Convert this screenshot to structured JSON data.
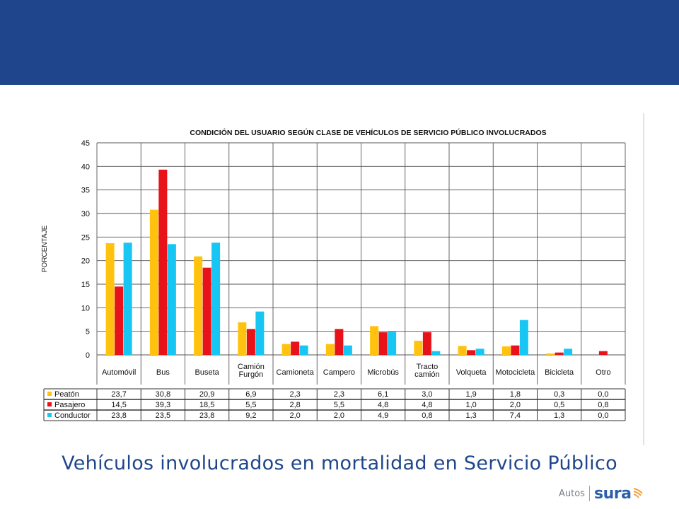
{
  "caption": "Vehículos involucrados en mortalidad en Servicio Público",
  "logo": {
    "prefix": "Autos",
    "brand": "sura",
    "mark": "sura-logo-icon"
  },
  "colors": {
    "header_band": "#1f468c",
    "caption": "#1f468c",
    "peaton": "#ffc20e",
    "pasajero": "#e8121b",
    "conductor": "#18c6f4"
  },
  "chart_data": {
    "type": "bar",
    "title": "CONDICIÓN DEL USUARIO SEGÚN CLASE DE VEHÍCULOS DE SERVICIO PÚBLICO INVOLUCRADOS",
    "ylabel": "PORCENTAJE",
    "xlabel": "",
    "ylim": [
      0,
      45
    ],
    "yticks": [
      "0",
      "5",
      "10",
      "15",
      "20",
      "25",
      "30",
      "35",
      "40",
      "45"
    ],
    "grid": true,
    "legend": "table-left",
    "categories": [
      [
        "Automóvil"
      ],
      [
        "Bus"
      ],
      [
        "Buseta"
      ],
      [
        "Camión",
        "Furgón"
      ],
      [
        "Camioneta"
      ],
      [
        "Campero"
      ],
      [
        "Microbús"
      ],
      [
        "Tracto",
        "camión"
      ],
      [
        "Volqueta"
      ],
      [
        "Motocicleta"
      ],
      [
        "Bicicleta"
      ],
      [
        "Otro"
      ]
    ],
    "series": [
      {
        "name": "Peatón",
        "color": "#ffc20e",
        "values": [
          23.7,
          30.8,
          20.9,
          6.9,
          2.3,
          2.3,
          6.1,
          3.0,
          1.9,
          1.8,
          0.3,
          0.0
        ],
        "labels": [
          "23,7",
          "30,8",
          "20,9",
          "6,9",
          "2,3",
          "2,3",
          "6,1",
          "3,0",
          "1,9",
          "1,8",
          "0,3",
          "0,0"
        ]
      },
      {
        "name": "Pasajero",
        "color": "#e8121b",
        "values": [
          14.5,
          39.3,
          18.5,
          5.5,
          2.8,
          5.5,
          4.8,
          4.8,
          1.0,
          2.0,
          0.5,
          0.8
        ],
        "labels": [
          "14,5",
          "39,3",
          "18,5",
          "5,5",
          "2,8",
          "5,5",
          "4,8",
          "4,8",
          "1,0",
          "2,0",
          "0,5",
          "0,8"
        ]
      },
      {
        "name": "Conductor",
        "color": "#18c6f4",
        "values": [
          23.8,
          23.5,
          23.8,
          9.2,
          2.0,
          2.0,
          4.9,
          0.8,
          1.3,
          7.4,
          1.3,
          0.0
        ],
        "labels": [
          "23,8",
          "23,5",
          "23,8",
          "9,2",
          "2,0",
          "2,0",
          "4,9",
          "0,8",
          "1,3",
          "7,4",
          "1,3",
          "0,0"
        ]
      }
    ]
  }
}
